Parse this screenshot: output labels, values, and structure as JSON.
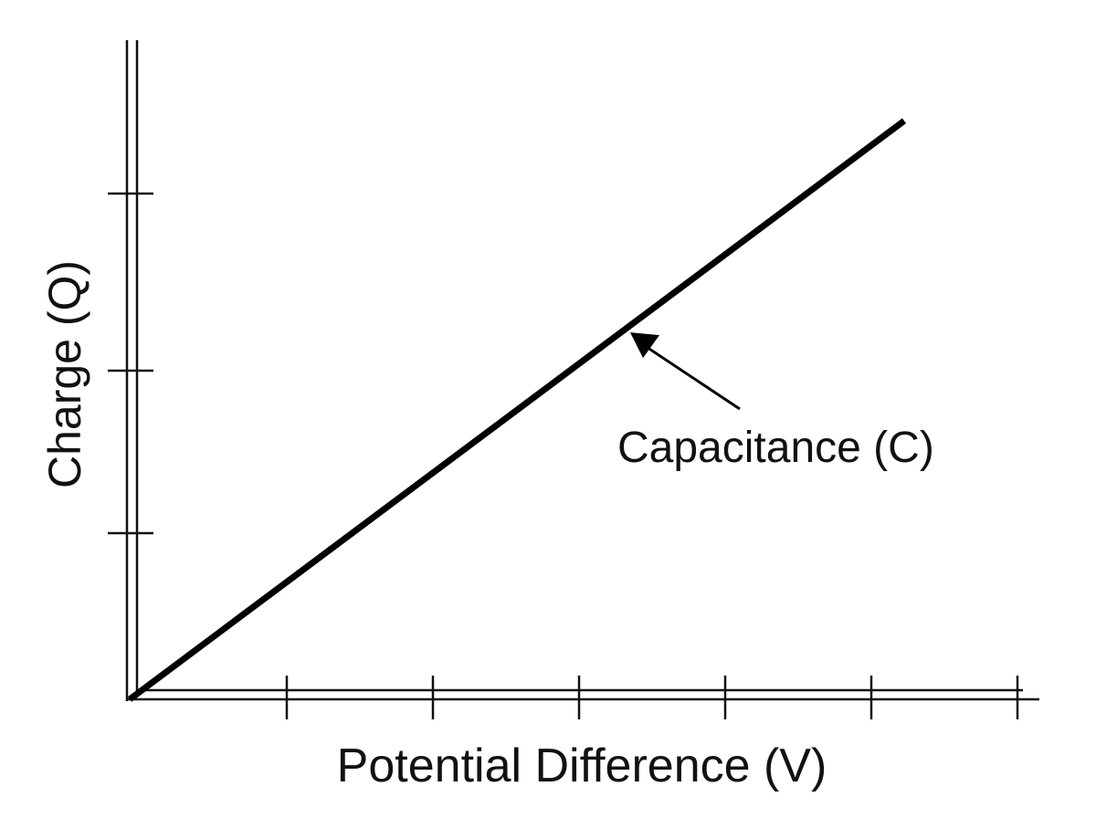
{
  "chart_data": {
    "type": "line",
    "title": "",
    "xlabel": "Potential Difference (V)",
    "ylabel": "Charge (Q)",
    "x_ticks": [
      1,
      2,
      3,
      4,
      5,
      6
    ],
    "y_ticks": [
      1,
      2,
      3
    ],
    "xlim": [
      0,
      6
    ],
    "ylim": [
      0,
      4
    ],
    "grid": false,
    "series": [
      {
        "x": [
          0,
          5.3
        ],
        "y": [
          0,
          3.56
        ]
      }
    ],
    "annotations": [
      {
        "text": "Capacitance (C)",
        "points_to": {
          "x": 3.4,
          "y": 2.28
        }
      }
    ],
    "colors": {
      "axis": "#111111",
      "line": "#000000"
    }
  }
}
